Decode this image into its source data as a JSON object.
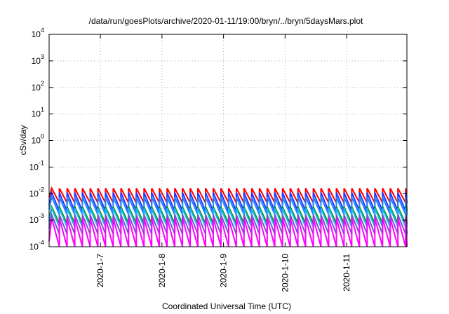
{
  "chart_data": {
    "type": "line",
    "title": "/data/run/goesPlots/archive/2020-01-11/19:00/bryn/../bryn/5daysMars.plot",
    "xlabel": "Coordinated Universal Time (UTC)",
    "ylabel": "cSv/day",
    "y_scale": "log",
    "ylim": [
      0.0001,
      10000
    ],
    "y_ticks": [
      {
        "base": "10",
        "exp": "-4",
        "value": 0.0001
      },
      {
        "base": "10",
        "exp": "-3",
        "value": 0.001
      },
      {
        "base": "10",
        "exp": "-2",
        "value": 0.01
      },
      {
        "base": "10",
        "exp": "-1",
        "value": 0.1
      },
      {
        "base": "10",
        "exp": "0",
        "value": 1
      },
      {
        "base": "10",
        "exp": "1",
        "value": 10
      },
      {
        "base": "10",
        "exp": "2",
        "value": 100
      },
      {
        "base": "10",
        "exp": "3",
        "value": 1000
      },
      {
        "base": "10",
        "exp": "4",
        "value": 10000
      }
    ],
    "xlim": [
      "2020-01-06T04:00",
      "2020-01-11T23:30"
    ],
    "x_ticks": [
      {
        "label": "2020-1-7",
        "value": "2020-01-07T00:00"
      },
      {
        "label": "2020-1-8",
        "value": "2020-01-08T00:00"
      },
      {
        "label": "2020-1-9",
        "value": "2020-01-09T00:00"
      },
      {
        "label": "2020-1-10",
        "value": "2020-01-10T00:00"
      },
      {
        "label": "2020-1-11",
        "value": "2020-01-11T00:00"
      }
    ],
    "grid": true,
    "legend": "none",
    "sawtooth_peak_times": [
      "2020-01-06T05:00",
      "2020-01-06T08:00",
      "2020-01-06T11:00",
      "2020-01-06T14:00",
      "2020-01-06T17:00",
      "2020-01-06T20:00",
      "2020-01-06T23:00",
      "2020-01-07T02:00",
      "2020-01-07T05:00",
      "2020-01-07T08:00",
      "2020-01-07T11:00",
      "2020-01-07T14:00",
      "2020-01-07T17:00",
      "2020-01-07T20:00",
      "2020-01-07T23:00",
      "2020-01-08T02:00",
      "2020-01-08T05:00",
      "2020-01-08T08:00",
      "2020-01-08T11:00",
      "2020-01-08T14:00",
      "2020-01-08T17:00",
      "2020-01-08T20:00",
      "2020-01-08T23:00",
      "2020-01-09T02:00",
      "2020-01-09T05:00",
      "2020-01-09T08:00",
      "2020-01-09T11:00",
      "2020-01-09T14:00",
      "2020-01-09T17:00",
      "2020-01-09T20:00",
      "2020-01-09T23:00",
      "2020-01-10T02:00",
      "2020-01-10T05:00",
      "2020-01-10T08:00",
      "2020-01-10T11:00",
      "2020-01-10T14:00",
      "2020-01-10T17:00",
      "2020-01-10T20:00",
      "2020-01-10T23:00",
      "2020-01-11T02:00",
      "2020-01-11T05:00",
      "2020-01-11T08:00",
      "2020-01-11T11:00",
      "2020-01-11T14:00",
      "2020-01-11T17:00",
      "2020-01-11T20:00",
      "2020-01-11T23:00"
    ],
    "series": [
      {
        "color": "#ff0000",
        "peak": 0.016,
        "trough": 0.0045
      },
      {
        "color": "#1e3cff",
        "peak": 0.011,
        "trough": 0.0022
      },
      {
        "color": "#2080ff",
        "peak": 0.0075,
        "trough": 0.0016
      },
      {
        "color": "#00a000",
        "peak": 0.0032,
        "trough": 0.00075
      },
      {
        "color": "#20b0ff",
        "peak": 0.0028,
        "trough": 0.00055
      },
      {
        "color": "#6a5acd",
        "peak": 0.0016,
        "trough": 0.0003
      },
      {
        "color": "#ff00ff",
        "peak": 0.0012,
        "trough": 0.0001
      }
    ]
  }
}
